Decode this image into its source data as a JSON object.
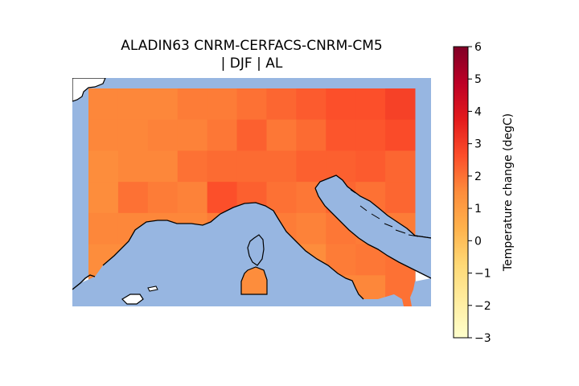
{
  "title_line1": "ALADIN63 CNRM-CERFACS-CNRM-CM5",
  "title_line2": "| DJF | AL",
  "colorbar": {
    "label": "Temperature change (degC)",
    "min": -3,
    "max": 6,
    "ticks": [
      "-3",
      "-2",
      "-1",
      "0",
      "1",
      "2",
      "3",
      "4",
      "5",
      "6"
    ],
    "colormap": "YlOrRd",
    "stops": [
      "#ffffcc",
      "#ffeda0",
      "#fed976",
      "#feb24c",
      "#fd8d3c",
      "#fc4e2a",
      "#e31a1c",
      "#bd0026",
      "#800026"
    ]
  },
  "colors": {
    "sea": "#97b6e1",
    "coastline": "#000000",
    "land_outside_grid": "#ffffff"
  },
  "chart_data": {
    "type": "heatmap",
    "variable": "Temperature change (degC)",
    "season": "DJF",
    "region": "AL",
    "rows": 7,
    "cols": 11,
    "values": [
      [
        1.6,
        1.6,
        1.6,
        1.8,
        1.8,
        2.0,
        2.2,
        2.4,
        2.6,
        2.6,
        2.9
      ],
      [
        1.6,
        1.6,
        1.7,
        1.7,
        1.9,
        2.3,
        1.9,
        2.1,
        2.5,
        2.5,
        2.7
      ],
      [
        1.5,
        1.6,
        1.6,
        2.0,
        2.1,
        2.1,
        2.1,
        2.3,
        2.3,
        2.4,
        2.2
      ],
      [
        1.5,
        2.0,
        1.8,
        1.7,
        2.6,
        2.3,
        2.0,
        1.9,
        2.2,
        2.0,
        2.2
      ],
      [
        1.6,
        1.6,
        1.6,
        1.6,
        1.8,
        1.8,
        1.8,
        1.7,
        1.9,
        1.8,
        1.8
      ],
      [
        1.5,
        1.5,
        1.6,
        1.6,
        1.6,
        1.6,
        1.6,
        1.5,
        1.8,
        1.9,
        2.0
      ],
      [
        1.6,
        1.6,
        1.6,
        1.6,
        1.6,
        1.6,
        1.6,
        1.6,
        1.6,
        1.6,
        2.0
      ]
    ]
  }
}
